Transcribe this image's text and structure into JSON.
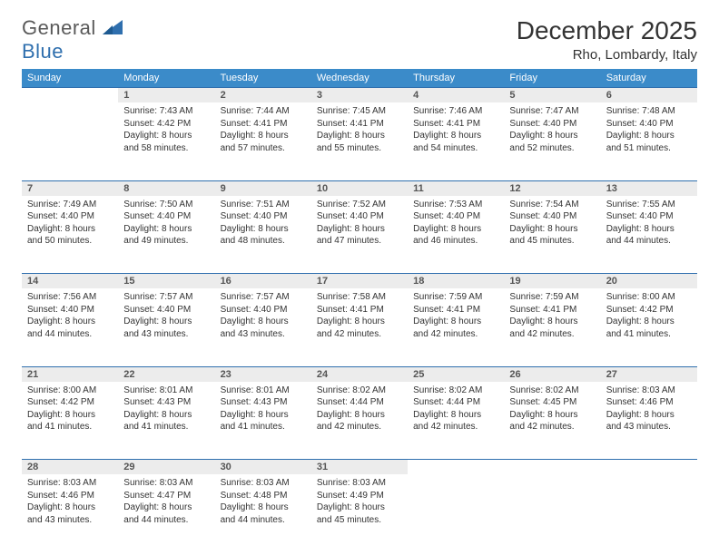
{
  "brand": {
    "part1": "General",
    "part2": "Blue"
  },
  "title": "December 2025",
  "location": "Rho, Lombardy, Italy",
  "theme": {
    "header_bg": "#3b8bc9",
    "header_text": "#ffffff",
    "daynum_bg": "#ececec",
    "daynum_border": "#2f6fae",
    "body_text": "#333333",
    "daynum_text": "#555555",
    "page_bg": "#ffffff",
    "logo_gray": "#5a5a5a",
    "logo_blue": "#2f6fae"
  },
  "weekdays": [
    "Sunday",
    "Monday",
    "Tuesday",
    "Wednesday",
    "Thursday",
    "Friday",
    "Saturday"
  ],
  "weeks": [
    [
      null,
      {
        "n": "1",
        "sr": "Sunrise: 7:43 AM",
        "ss": "Sunset: 4:42 PM",
        "dl": "Daylight: 8 hours and 58 minutes."
      },
      {
        "n": "2",
        "sr": "Sunrise: 7:44 AM",
        "ss": "Sunset: 4:41 PM",
        "dl": "Daylight: 8 hours and 57 minutes."
      },
      {
        "n": "3",
        "sr": "Sunrise: 7:45 AM",
        "ss": "Sunset: 4:41 PM",
        "dl": "Daylight: 8 hours and 55 minutes."
      },
      {
        "n": "4",
        "sr": "Sunrise: 7:46 AM",
        "ss": "Sunset: 4:41 PM",
        "dl": "Daylight: 8 hours and 54 minutes."
      },
      {
        "n": "5",
        "sr": "Sunrise: 7:47 AM",
        "ss": "Sunset: 4:40 PM",
        "dl": "Daylight: 8 hours and 52 minutes."
      },
      {
        "n": "6",
        "sr": "Sunrise: 7:48 AM",
        "ss": "Sunset: 4:40 PM",
        "dl": "Daylight: 8 hours and 51 minutes."
      }
    ],
    [
      {
        "n": "7",
        "sr": "Sunrise: 7:49 AM",
        "ss": "Sunset: 4:40 PM",
        "dl": "Daylight: 8 hours and 50 minutes."
      },
      {
        "n": "8",
        "sr": "Sunrise: 7:50 AM",
        "ss": "Sunset: 4:40 PM",
        "dl": "Daylight: 8 hours and 49 minutes."
      },
      {
        "n": "9",
        "sr": "Sunrise: 7:51 AM",
        "ss": "Sunset: 4:40 PM",
        "dl": "Daylight: 8 hours and 48 minutes."
      },
      {
        "n": "10",
        "sr": "Sunrise: 7:52 AM",
        "ss": "Sunset: 4:40 PM",
        "dl": "Daylight: 8 hours and 47 minutes."
      },
      {
        "n": "11",
        "sr": "Sunrise: 7:53 AM",
        "ss": "Sunset: 4:40 PM",
        "dl": "Daylight: 8 hours and 46 minutes."
      },
      {
        "n": "12",
        "sr": "Sunrise: 7:54 AM",
        "ss": "Sunset: 4:40 PM",
        "dl": "Daylight: 8 hours and 45 minutes."
      },
      {
        "n": "13",
        "sr": "Sunrise: 7:55 AM",
        "ss": "Sunset: 4:40 PM",
        "dl": "Daylight: 8 hours and 44 minutes."
      }
    ],
    [
      {
        "n": "14",
        "sr": "Sunrise: 7:56 AM",
        "ss": "Sunset: 4:40 PM",
        "dl": "Daylight: 8 hours and 44 minutes."
      },
      {
        "n": "15",
        "sr": "Sunrise: 7:57 AM",
        "ss": "Sunset: 4:40 PM",
        "dl": "Daylight: 8 hours and 43 minutes."
      },
      {
        "n": "16",
        "sr": "Sunrise: 7:57 AM",
        "ss": "Sunset: 4:40 PM",
        "dl": "Daylight: 8 hours and 43 minutes."
      },
      {
        "n": "17",
        "sr": "Sunrise: 7:58 AM",
        "ss": "Sunset: 4:41 PM",
        "dl": "Daylight: 8 hours and 42 minutes."
      },
      {
        "n": "18",
        "sr": "Sunrise: 7:59 AM",
        "ss": "Sunset: 4:41 PM",
        "dl": "Daylight: 8 hours and 42 minutes."
      },
      {
        "n": "19",
        "sr": "Sunrise: 7:59 AM",
        "ss": "Sunset: 4:41 PM",
        "dl": "Daylight: 8 hours and 42 minutes."
      },
      {
        "n": "20",
        "sr": "Sunrise: 8:00 AM",
        "ss": "Sunset: 4:42 PM",
        "dl": "Daylight: 8 hours and 41 minutes."
      }
    ],
    [
      {
        "n": "21",
        "sr": "Sunrise: 8:00 AM",
        "ss": "Sunset: 4:42 PM",
        "dl": "Daylight: 8 hours and 41 minutes."
      },
      {
        "n": "22",
        "sr": "Sunrise: 8:01 AM",
        "ss": "Sunset: 4:43 PM",
        "dl": "Daylight: 8 hours and 41 minutes."
      },
      {
        "n": "23",
        "sr": "Sunrise: 8:01 AM",
        "ss": "Sunset: 4:43 PM",
        "dl": "Daylight: 8 hours and 41 minutes."
      },
      {
        "n": "24",
        "sr": "Sunrise: 8:02 AM",
        "ss": "Sunset: 4:44 PM",
        "dl": "Daylight: 8 hours and 42 minutes."
      },
      {
        "n": "25",
        "sr": "Sunrise: 8:02 AM",
        "ss": "Sunset: 4:44 PM",
        "dl": "Daylight: 8 hours and 42 minutes."
      },
      {
        "n": "26",
        "sr": "Sunrise: 8:02 AM",
        "ss": "Sunset: 4:45 PM",
        "dl": "Daylight: 8 hours and 42 minutes."
      },
      {
        "n": "27",
        "sr": "Sunrise: 8:03 AM",
        "ss": "Sunset: 4:46 PM",
        "dl": "Daylight: 8 hours and 43 minutes."
      }
    ],
    [
      {
        "n": "28",
        "sr": "Sunrise: 8:03 AM",
        "ss": "Sunset: 4:46 PM",
        "dl": "Daylight: 8 hours and 43 minutes."
      },
      {
        "n": "29",
        "sr": "Sunrise: 8:03 AM",
        "ss": "Sunset: 4:47 PM",
        "dl": "Daylight: 8 hours and 44 minutes."
      },
      {
        "n": "30",
        "sr": "Sunrise: 8:03 AM",
        "ss": "Sunset: 4:48 PM",
        "dl": "Daylight: 8 hours and 44 minutes."
      },
      {
        "n": "31",
        "sr": "Sunrise: 8:03 AM",
        "ss": "Sunset: 4:49 PM",
        "dl": "Daylight: 8 hours and 45 minutes."
      },
      null,
      null,
      null
    ]
  ]
}
